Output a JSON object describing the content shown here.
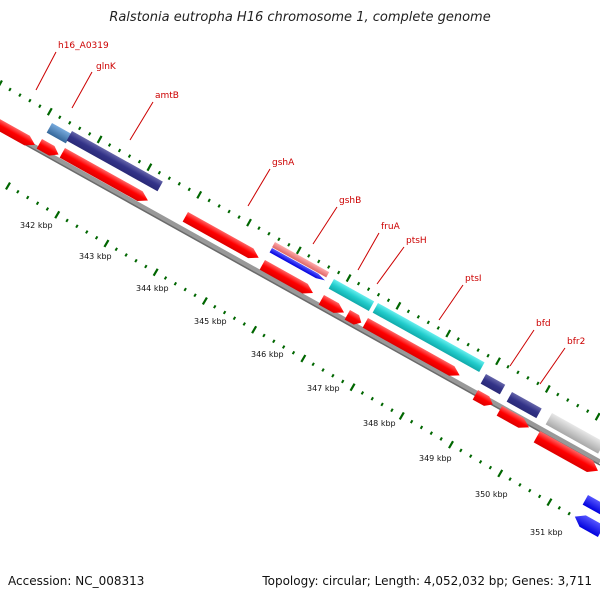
{
  "title": "Ralstonia eutropha H16 chromosome 1, complete genome",
  "footer": {
    "accession_label": "Accession: ",
    "accession": "NC_008313",
    "topology_label": "Topology: ",
    "topology": "circular",
    "length_label": "; Length: ",
    "length": "4,052,032 bp",
    "genes_label": "; Genes: ",
    "genes": "3,711"
  },
  "kbp_ticks": [
    "342 kbp",
    "343 kbp",
    "344 kbp",
    "345 kbp",
    "346 kbp",
    "347 kbp",
    "348 kbp",
    "349 kbp",
    "350 kbp",
    "351 kbp"
  ],
  "gene_labels": [
    "h16_A0319",
    "glnK",
    "amtB",
    "gshA",
    "gshB",
    "fruA",
    "ptsH",
    "ptsI",
    "bfd",
    "bfr2"
  ],
  "colors": {
    "red": "#ff0000",
    "dark_blue": "#333399",
    "steel_blue": "#3377bb",
    "cyan": "#22cccc",
    "salmon": "#ee7777",
    "blue": "#0000ff",
    "grey": "#aaaaaa",
    "backbone": "#888888",
    "tick_green": "#006600",
    "label_red": "#cc0000"
  }
}
